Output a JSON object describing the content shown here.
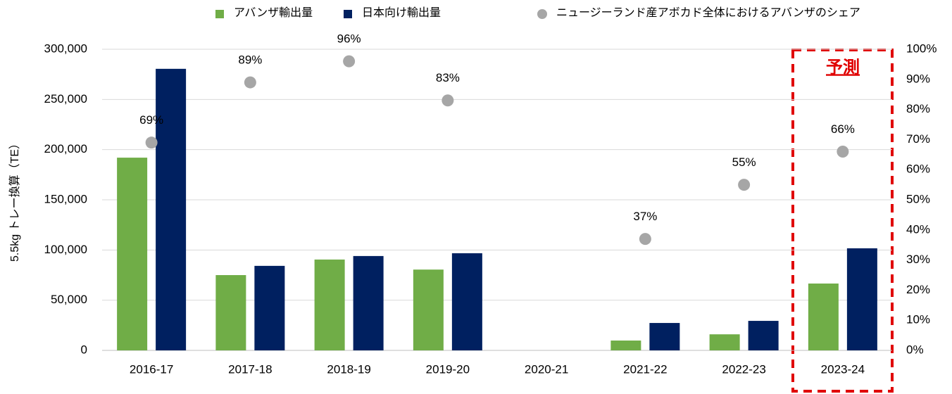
{
  "chart_data": {
    "type": "bar",
    "categories": [
      "2016-17",
      "2017-18",
      "2018-19",
      "2019-20",
      "2020-21",
      "2021-22",
      "2022-23",
      "2023-24"
    ],
    "series": [
      {
        "name": "アバンザ輸出量",
        "color": "#70ad47",
        "values": [
          192000,
          75000,
          90500,
          80500,
          null,
          9800,
          16000,
          66600
        ]
      },
      {
        "name": "日本向け輸出量",
        "color": "#002060",
        "values": [
          280500,
          84200,
          94000,
          96800,
          null,
          27300,
          29400,
          101700
        ]
      },
      {
        "name": "ニュージーランド産アボカド全体におけるアバンザのシェア",
        "color": "#a6a6a6",
        "type": "scatter",
        "axis": "y2",
        "values": [
          69,
          89,
          96,
          83,
          null,
          37,
          55,
          66
        ],
        "value_labels": [
          "69%",
          "89%",
          "96%",
          "83%",
          null,
          "37%",
          "55%",
          "66%"
        ]
      }
    ],
    "y_label": "5.5kg トレー換算（TE）",
    "ylim": [
      0,
      300000
    ],
    "yticks": [
      0,
      {
        "value": 50000,
        "label": "50,000"
      },
      {
        "value": 100000,
        "label": "100,000"
      },
      {
        "value": 150000,
        "label": "150,000"
      },
      {
        "value": 200000,
        "label": "200,000"
      },
      {
        "value": 250000,
        "label": "250,000"
      },
      {
        "value": 300000,
        "label": "300,000"
      }
    ],
    "y2lim": [
      0,
      100
    ],
    "y2ticks": [
      {
        "value": 0,
        "label": "0%"
      },
      {
        "value": 10,
        "label": "10%"
      },
      {
        "value": 20,
        "label": "20%"
      },
      {
        "value": 30,
        "label": "30%"
      },
      {
        "value": 40,
        "label": "40%"
      },
      {
        "value": 50,
        "label": "50%"
      },
      {
        "value": 60,
        "label": "60%"
      },
      {
        "value": 70,
        "label": "70%"
      },
      {
        "value": 80,
        "label": "80%"
      },
      {
        "value": 90,
        "label": "90%"
      },
      {
        "value": 100,
        "label": "100%"
      }
    ],
    "grid": true,
    "legend": "top",
    "annotation": "予測"
  }
}
